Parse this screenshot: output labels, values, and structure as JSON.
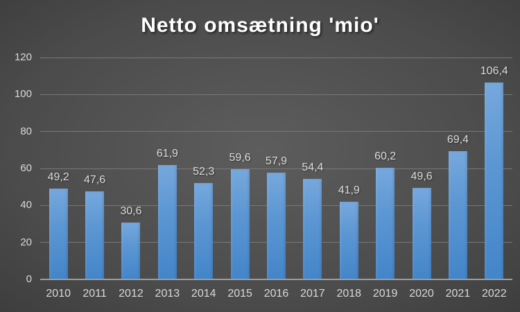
{
  "title": "Netto omsætning 'mio'",
  "colors": {
    "background_center": "#5d5d5d",
    "background_edge": "#262626",
    "bar_gradient_top": "#76a8dd",
    "bar_gradient_bottom": "#4385c9",
    "gridline": "#787878",
    "axis_line": "#9e9e9e",
    "tick_label": "#d9d9d9",
    "value_label": "#dcdcdc",
    "title_color": "#ffffff"
  },
  "chart_data": {
    "type": "bar",
    "title": "Netto omsætning 'mio'",
    "categories": [
      "2010",
      "2011",
      "2012",
      "2013",
      "2014",
      "2015",
      "2016",
      "2017",
      "2018",
      "2019",
      "2020",
      "2021",
      "2022"
    ],
    "values": [
      49.2,
      47.6,
      30.6,
      61.9,
      52.3,
      59.6,
      57.9,
      54.4,
      41.9,
      60.2,
      49.6,
      69.4,
      106.4
    ],
    "value_labels": [
      "49,2",
      "47,6",
      "30,6",
      "61,9",
      "52,3",
      "59,6",
      "57,9",
      "54,4",
      "41,9",
      "60,2",
      "49,6",
      "69,4",
      "106,4"
    ],
    "xlabel": "",
    "ylabel": "",
    "ylim": [
      0,
      120
    ],
    "ytick_step": 20,
    "ytick_labels": [
      "0",
      "20",
      "40",
      "60",
      "80",
      "100",
      "120"
    ],
    "grid": true,
    "legend": false,
    "decimal_separator": ","
  }
}
